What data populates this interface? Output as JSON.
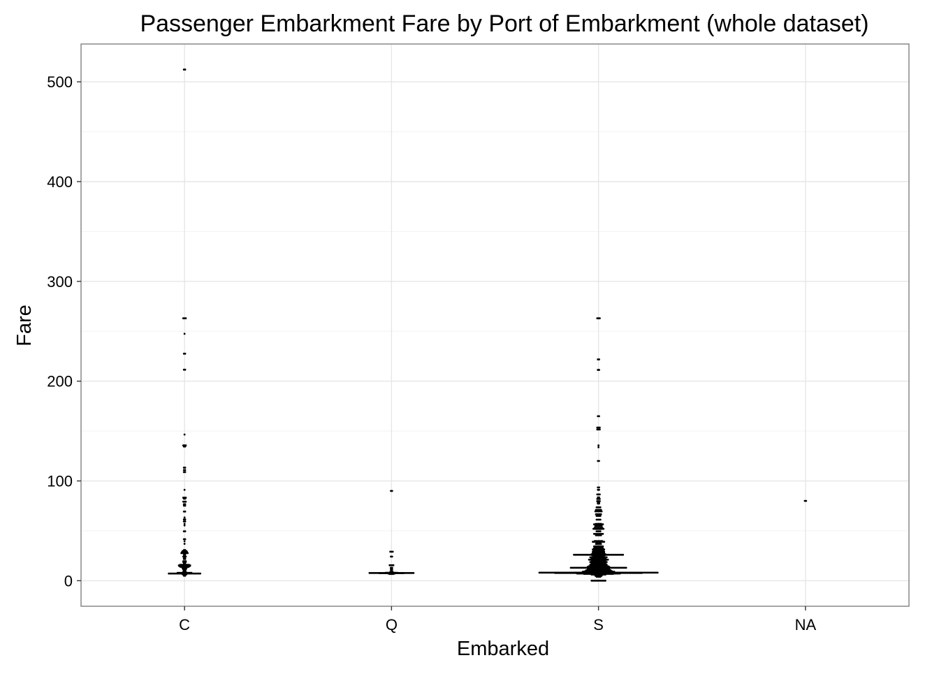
{
  "chart_data": {
    "type": "scatter",
    "title": "Passenger Embarkment Fare by Port of Embarkment (whole dataset)",
    "xlabel": "Embarked",
    "ylabel": "Fare",
    "categories": [
      "C",
      "Q",
      "S",
      "NA"
    ],
    "y_ticks": [
      0,
      100,
      200,
      300,
      400,
      500
    ],
    "y_tick_labels": [
      "0",
      "100",
      "200",
      "300",
      "400",
      "500"
    ],
    "ylim": [
      -25.6,
      537.9
    ],
    "grid": true,
    "legend": "none",
    "series": [
      {
        "category": "C",
        "points": [
          [
            512.3,
            2
          ],
          [
            263.0,
            3
          ],
          [
            247.5,
            1
          ],
          [
            227.5,
            2
          ],
          [
            211.5,
            2
          ],
          [
            146.5,
            1
          ],
          [
            135.6,
            3
          ],
          [
            134.5,
            2
          ],
          [
            113.3,
            2
          ],
          [
            110.9,
            2
          ],
          [
            108.9,
            2
          ],
          [
            91.1,
            1
          ],
          [
            83.2,
            3
          ],
          [
            82.2,
            2
          ],
          [
            79.2,
            3
          ],
          [
            76.7,
            2
          ],
          [
            75.2,
            2
          ],
          [
            69.3,
            2
          ],
          [
            63.4,
            1
          ],
          [
            61.4,
            2
          ],
          [
            59.4,
            2
          ],
          [
            57.0,
            1
          ],
          [
            55.4,
            1
          ],
          [
            49.5,
            2
          ],
          [
            41.6,
            2
          ],
          [
            39.6,
            1
          ],
          [
            37.0,
            1
          ],
          [
            30.7,
            2
          ],
          [
            29.7,
            4
          ],
          [
            28.7,
            5
          ],
          [
            27.7,
            6
          ],
          [
            26.0,
            2
          ],
          [
            24.2,
            3
          ],
          [
            22.4,
            2
          ],
          [
            21.7,
            2
          ],
          [
            19.5,
            3
          ],
          [
            18.8,
            3
          ],
          [
            17.0,
            2
          ],
          [
            15.9,
            8
          ],
          [
            15.3,
            10
          ],
          [
            14.5,
            9
          ],
          [
            13.8,
            7
          ],
          [
            12.5,
            4
          ],
          [
            11.2,
            3
          ],
          [
            10.5,
            2
          ],
          [
            9.0,
            3
          ],
          [
            7.9,
            12
          ],
          [
            7.2,
            26
          ],
          [
            6.4,
            4
          ],
          [
            5.0,
            2
          ]
        ]
      },
      {
        "category": "Q",
        "points": [
          [
            90.0,
            2
          ],
          [
            29.1,
            3
          ],
          [
            24.2,
            2
          ],
          [
            15.5,
            4
          ],
          [
            13.0,
            2
          ],
          [
            12.4,
            2
          ],
          [
            10.7,
            2
          ],
          [
            8.8,
            3
          ],
          [
            8.0,
            10
          ],
          [
            7.75,
            36
          ],
          [
            7.6,
            20
          ],
          [
            7.2,
            6
          ],
          [
            6.8,
            4
          ]
        ]
      },
      {
        "category": "S",
        "points": [
          [
            263.0,
            3
          ],
          [
            221.8,
            2
          ],
          [
            211.3,
            2
          ],
          [
            164.9,
            2
          ],
          [
            153.5,
            3
          ],
          [
            151.6,
            3
          ],
          [
            135.6,
            1
          ],
          [
            133.7,
            1
          ],
          [
            120.0,
            2
          ],
          [
            93.5,
            2
          ],
          [
            91.1,
            2
          ],
          [
            86.5,
            3
          ],
          [
            83.5,
            2
          ],
          [
            81.9,
            3
          ],
          [
            79.7,
            3
          ],
          [
            78.3,
            2
          ],
          [
            77.3,
            2
          ],
          [
            73.5,
            4
          ],
          [
            71.0,
            5
          ],
          [
            69.5,
            6
          ],
          [
            66.6,
            5
          ],
          [
            65.0,
            4
          ],
          [
            61.2,
            4
          ],
          [
            57.0,
            5
          ],
          [
            56.5,
            8
          ],
          [
            55.0,
            6
          ],
          [
            53.1,
            7
          ],
          [
            52.0,
            9
          ],
          [
            51.9,
            5
          ],
          [
            49.5,
            4
          ],
          [
            46.9,
            8
          ],
          [
            45.5,
            5
          ],
          [
            39.7,
            7
          ],
          [
            39.0,
            10
          ],
          [
            38.0,
            4
          ],
          [
            36.8,
            5
          ],
          [
            34.4,
            8
          ],
          [
            33.5,
            7
          ],
          [
            32.5,
            8
          ],
          [
            31.3,
            10
          ],
          [
            30.1,
            9
          ],
          [
            29.1,
            10
          ],
          [
            27.9,
            10
          ],
          [
            26.55,
            12
          ],
          [
            26.0,
            40
          ],
          [
            25.5,
            11
          ],
          [
            24.2,
            9
          ],
          [
            23.5,
            14
          ],
          [
            22.5,
            12
          ],
          [
            21.7,
            10
          ],
          [
            21.1,
            16
          ],
          [
            20.5,
            12
          ],
          [
            19.5,
            10
          ],
          [
            18.7,
            14
          ],
          [
            17.9,
            12
          ],
          [
            17.0,
            12
          ],
          [
            16.1,
            14
          ],
          [
            15.5,
            12
          ],
          [
            14.5,
            16
          ],
          [
            13.9,
            18
          ],
          [
            13.0,
            45
          ],
          [
            12.4,
            14
          ],
          [
            11.5,
            18
          ],
          [
            10.5,
            20
          ],
          [
            9.6,
            22
          ],
          [
            9.0,
            26
          ],
          [
            8.05,
            95
          ],
          [
            7.9,
            40
          ],
          [
            7.8,
            70
          ],
          [
            7.25,
            35
          ],
          [
            6.9,
            24
          ],
          [
            6.2,
            12
          ],
          [
            5.0,
            6
          ],
          [
            4.0,
            4
          ],
          [
            0.0,
            12
          ]
        ]
      },
      {
        "category": "NA",
        "points": [
          [
            80.0,
            2
          ]
        ]
      }
    ]
  }
}
